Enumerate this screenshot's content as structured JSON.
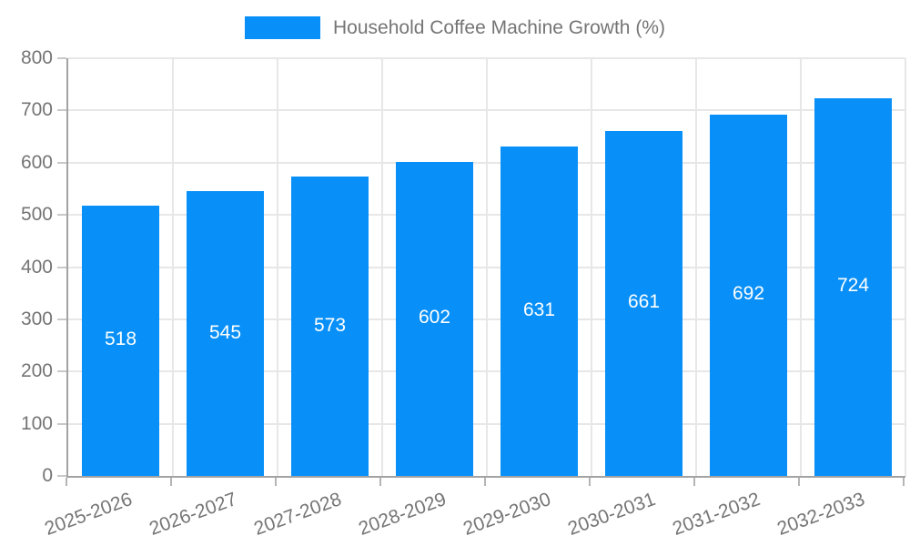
{
  "legend": {
    "label": "Household Coffee Machine Growth (%)"
  },
  "chart_data": {
    "type": "bar",
    "title": "",
    "series_name": "Household Coffee Machine Growth (%)",
    "categories": [
      "2025-2026",
      "2026-2027",
      "2027-2028",
      "2028-2029",
      "2029-2030",
      "2030-2031",
      "2031-2032",
      "2032-2033"
    ],
    "values": [
      518,
      545,
      573,
      602,
      631,
      661,
      692,
      724
    ],
    "value_labels_shown": true,
    "ylim": [
      0,
      800
    ],
    "ytick_step": 100,
    "ytick_labels": [
      "0",
      "100",
      "200",
      "300",
      "400",
      "500",
      "600",
      "700",
      "800"
    ],
    "grid": true,
    "legend_position": "top",
    "xlabel": "",
    "ylabel": "",
    "colors": {
      "bar": "#0890f8",
      "value_label": "#ffffff",
      "axis_line": "#a3a3a3",
      "gridline": "#e7e7e7",
      "tick_text": "#757575",
      "legend_text": "#757575"
    }
  }
}
